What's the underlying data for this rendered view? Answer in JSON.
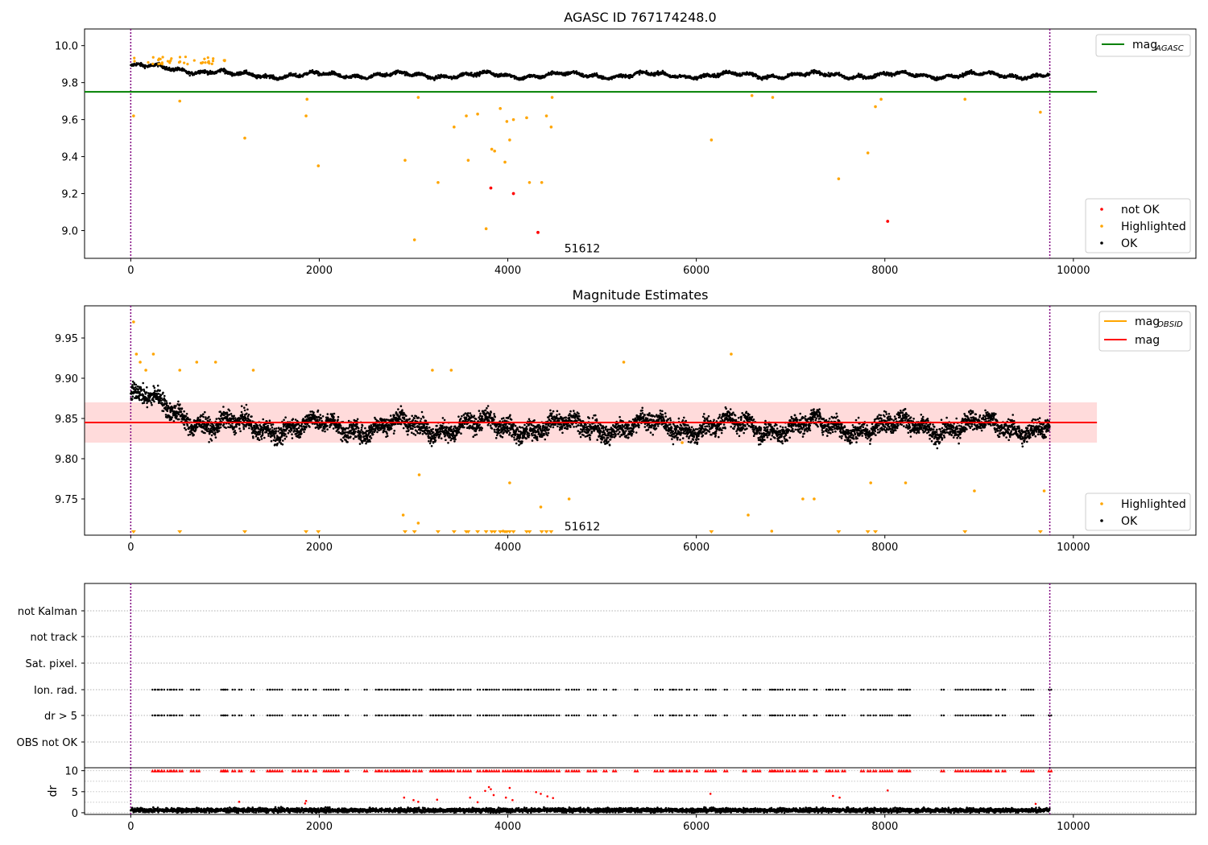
{
  "chart_data": [
    {
      "id": "agasc",
      "type": "scatter",
      "title": "AGASC ID 767174248.0",
      "xlim": [
        -490,
        11300
      ],
      "ylim": [
        8.85,
        10.09
      ],
      "xticks": [
        0,
        2000,
        4000,
        6000,
        8000,
        10000
      ],
      "xtick_labels": [
        "0",
        "2000",
        "4000",
        "6000",
        "8000",
        "10000"
      ],
      "yticks": [
        9.0,
        9.2,
        9.4,
        9.6,
        9.8,
        10.0
      ],
      "ytick_labels": [
        "9.0",
        "9.2",
        "9.4",
        "9.6",
        "9.8",
        "10.0"
      ],
      "vlines": [
        0,
        9750
      ],
      "hline": {
        "label": "mag",
        "label_sub": "AGASC",
        "y": 9.75,
        "x": [
          -490,
          10250
        ],
        "color": "#008000"
      },
      "ok_band": {
        "x": [
          0,
          9750
        ],
        "base": 9.84,
        "spread": 0.035
      },
      "annotation": {
        "text": "51612",
        "x": 4600,
        "y": 8.9
      },
      "series": [
        {
          "name": "not OK",
          "color": "#ff0000",
          "points": [
            [
              3820,
              9.23
            ],
            [
              4060,
              9.2
            ],
            [
              4320,
              8.99
            ],
            [
              8030,
              9.05
            ]
          ]
        },
        {
          "name": "Highlighted",
          "color": "#ffa500",
          "points": [
            [
              30,
              9.62
            ],
            [
              520,
              9.7
            ],
            [
              1210,
              9.5
            ],
            [
              1860,
              9.62
            ],
            [
              1870,
              9.71
            ],
            [
              1990,
              9.35
            ],
            [
              2910,
              9.38
            ],
            [
              3010,
              8.95
            ],
            [
              3050,
              9.72
            ],
            [
              3260,
              9.26
            ],
            [
              3430,
              9.56
            ],
            [
              3560,
              9.62
            ],
            [
              3580,
              9.38
            ],
            [
              3680,
              9.63
            ],
            [
              3770,
              9.01
            ],
            [
              3830,
              9.44
            ],
            [
              3860,
              9.43
            ],
            [
              3920,
              9.66
            ],
            [
              3970,
              9.37
            ],
            [
              3990,
              9.59
            ],
            [
              4020,
              9.49
            ],
            [
              4060,
              9.6
            ],
            [
              4200,
              9.61
            ],
            [
              4230,
              9.26
            ],
            [
              4360,
              9.26
            ],
            [
              4410,
              9.62
            ],
            [
              4460,
              9.56
            ],
            [
              4470,
              9.72
            ],
            [
              6160,
              9.49
            ],
            [
              6590,
              9.73
            ],
            [
              6810,
              9.72
            ],
            [
              7510,
              9.28
            ],
            [
              7820,
              9.42
            ],
            [
              7900,
              9.67
            ],
            [
              7960,
              9.71
            ],
            [
              8850,
              9.71
            ],
            [
              9650,
              9.64
            ]
          ]
        },
        {
          "name": "OK",
          "color": "#000000"
        }
      ],
      "legend": {
        "position": "lower right",
        "entries": [
          "not OK",
          "Highlighted",
          "OK"
        ]
      }
    },
    {
      "id": "mag_estimates",
      "type": "scatter",
      "title": "Magnitude Estimates",
      "xlim": [
        -490,
        11300
      ],
      "ylim": [
        9.705,
        9.99
      ],
      "xticks": [
        0,
        2000,
        4000,
        6000,
        8000,
        10000
      ],
      "xtick_labels": [
        "0",
        "2000",
        "4000",
        "6000",
        "8000",
        "10000"
      ],
      "yticks": [
        9.75,
        9.8,
        9.85,
        9.9,
        9.95
      ],
      "ytick_labels": [
        "9.75",
        "9.80",
        "9.85",
        "9.90",
        "9.95"
      ],
      "vlines": [
        0,
        9750
      ],
      "hline": {
        "label": "mag",
        "y": 9.845,
        "x": [
          -490,
          10250
        ],
        "color": "#ff0000"
      },
      "band": {
        "y": [
          9.82,
          9.87
        ],
        "x": [
          -490,
          10250
        ],
        "color": "#ffb0b0"
      },
      "ok_band": {
        "x": [
          0,
          9750
        ],
        "base": 9.84,
        "spread": 0.02
      },
      "annotation": {
        "text": "51612",
        "x": 4600,
        "y": 9.715
      },
      "series": [
        {
          "name": "Highlighted",
          "color": "#ffa500",
          "points": [
            [
              30,
              9.97
            ],
            [
              60,
              9.93
            ],
            [
              100,
              9.92
            ],
            [
              160,
              9.91
            ],
            [
              240,
              9.93
            ],
            [
              520,
              9.91
            ],
            [
              700,
              9.92
            ],
            [
              900,
              9.92
            ],
            [
              1300,
              9.91
            ],
            [
              2890,
              9.73
            ],
            [
              3050,
              9.72
            ],
            [
              3060,
              9.78
            ],
            [
              3200,
              9.91
            ],
            [
              3400,
              9.91
            ],
            [
              3950,
              9.71
            ],
            [
              4020,
              9.77
            ],
            [
              4350,
              9.74
            ],
            [
              4650,
              9.75
            ],
            [
              5230,
              9.92
            ],
            [
              5850,
              9.82
            ],
            [
              6370,
              9.93
            ],
            [
              6550,
              9.73
            ],
            [
              6800,
              9.71
            ],
            [
              7130,
              9.75
            ],
            [
              7250,
              9.75
            ],
            [
              7850,
              9.77
            ],
            [
              8220,
              9.77
            ],
            [
              8950,
              9.76
            ],
            [
              9690,
              9.76
            ]
          ]
        },
        {
          "name": "OK",
          "color": "#000000"
        }
      ],
      "floor_markers": {
        "color": "#ffa500",
        "x": [
          30,
          520,
          1210,
          1860,
          1990,
          2910,
          3010,
          3260,
          3430,
          3560,
          3580,
          3680,
          3770,
          3830,
          3860,
          3920,
          3970,
          3990,
          4020,
          4060,
          4200,
          4230,
          4360,
          4410,
          4460,
          6160,
          7510,
          7820,
          7900,
          8850,
          9650
        ]
      },
      "legend_top": {
        "position": "upper right",
        "entries": [
          {
            "label": "mag",
            "sub": "OBSID",
            "color": "#ffa500"
          },
          {
            "label": "mag",
            "color": "#ff0000"
          }
        ]
      },
      "legend_bottom": {
        "position": "lower right",
        "entries": [
          "Highlighted",
          "OK"
        ]
      }
    },
    {
      "id": "flags",
      "type": "scatter",
      "xlim": [
        -490,
        11300
      ],
      "categories": [
        "not Kalman",
        "not track",
        "Sat. pixel.",
        "Ion. rad.",
        "dr > 5",
        "OBS not OK"
      ],
      "vlines": [
        0,
        9750
      ],
      "flag_x": [
        230,
        260,
        300,
        330,
        390,
        430,
        460,
        520,
        640,
        700,
        960,
        980,
        1000,
        1080,
        1150,
        1280,
        1450,
        1480,
        1530,
        1580,
        1720,
        1780,
        1850,
        1940,
        2050,
        2100,
        2150,
        2180,
        2280,
        2480,
        2600,
        2640,
        2700,
        2760,
        2800,
        2850,
        2890,
        2930,
        3000,
        3060,
        3180,
        3210,
        3240,
        3270,
        3310,
        3360,
        3400,
        3470,
        3530,
        3580,
        3680,
        3740,
        3780,
        3830,
        3880,
        3950,
        4000,
        4050,
        4080,
        4120,
        4180,
        4220,
        4280,
        4330,
        4380,
        4410,
        4460,
        4520,
        4620,
        4680,
        4730,
        4850,
        4910,
        5020,
        5120,
        5350,
        5560,
        5620,
        5720,
        5760,
        5820,
        5900,
        5980,
        6100,
        6150,
        6180,
        6300,
        6500,
        6600,
        6650,
        6780,
        6800,
        6840,
        6890,
        6960,
        7020,
        7100,
        7150,
        7250,
        7380,
        7420,
        7480,
        7550,
        7750,
        7820,
        7880,
        7950,
        8000,
        8050,
        8150,
        8200,
        8240,
        8600,
        8750,
        8800,
        8860,
        8920,
        8970,
        9020,
        9060,
        9100,
        9180,
        9250,
        9450,
        9500,
        9550,
        9740
      ]
    },
    {
      "id": "dr",
      "type": "scatter",
      "ylabel": "dr",
      "xlim": [
        -490,
        11300
      ],
      "ylim": [
        -0.4,
        10.7
      ],
      "xticks": [
        0,
        2000,
        4000,
        6000,
        8000,
        10000
      ],
      "xtick_labels": [
        "0",
        "2000",
        "4000",
        "6000",
        "8000",
        "10000"
      ],
      "yticks": [
        0,
        5,
        10
      ],
      "ytick_labels": [
        "0",
        "5",
        "10"
      ],
      "vlines": [
        0,
        9750
      ],
      "capped_value": 10,
      "highlight_points": {
        "color": "#ff0000",
        "points": [
          [
            1150,
            2.6
          ],
          [
            1850,
            2.2
          ],
          [
            1860,
            2.8
          ],
          [
            2900,
            3.6
          ],
          [
            3000,
            3.0
          ],
          [
            3050,
            2.6
          ],
          [
            3250,
            3.1
          ],
          [
            3600,
            3.6
          ],
          [
            3680,
            2.5
          ],
          [
            3760,
            5.2
          ],
          [
            3800,
            6.1
          ],
          [
            3820,
            5.6
          ],
          [
            3850,
            4.2
          ],
          [
            3980,
            3.6
          ],
          [
            4020,
            5.9
          ],
          [
            4050,
            3.0
          ],
          [
            4300,
            4.9
          ],
          [
            4350,
            4.5
          ],
          [
            4420,
            3.9
          ],
          [
            4480,
            3.5
          ],
          [
            6150,
            4.5
          ],
          [
            7450,
            4.0
          ],
          [
            7520,
            3.6
          ],
          [
            8030,
            5.3
          ],
          [
            9600,
            2.1
          ]
        ]
      }
    }
  ]
}
